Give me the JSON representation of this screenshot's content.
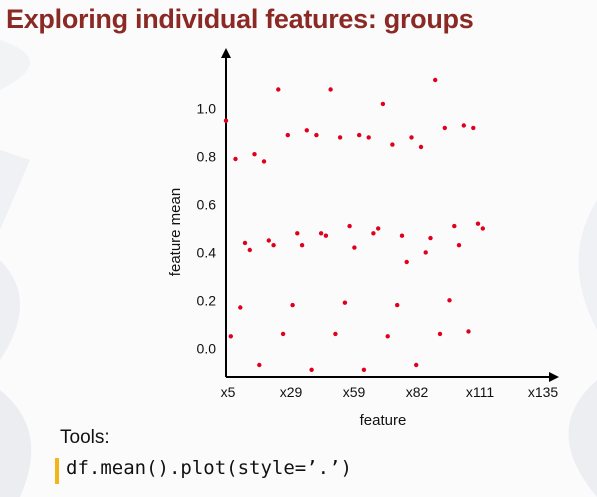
{
  "slide": {
    "title": "Exploring individual features: groups",
    "tools_label": "Tools:",
    "code": "df.mean().plot(style=’.’)",
    "accent_color": "#8b2a25",
    "code_bar_color": "#f2b51a"
  },
  "chart_data": {
    "type": "scatter",
    "xlabel": "feature",
    "ylabel": "feature mean",
    "x_tick_labels": [
      "x5",
      "x29",
      "x59",
      "x82",
      "x111",
      "x135"
    ],
    "y_ticks": [
      0.0,
      0.2,
      0.4,
      0.6,
      0.8,
      1.0
    ],
    "y_tick_labels": [
      "0.0",
      "0.2",
      "0.4",
      "0.6",
      "0.8",
      "1.0"
    ],
    "xlim": [
      5,
      140
    ],
    "ylim": [
      -0.12,
      1.22
    ],
    "grid": false,
    "marker_color": "#e0001b",
    "series": [
      {
        "points": [
          [
            5,
            0.95
          ],
          [
            7,
            0.05
          ],
          [
            9,
            0.79
          ],
          [
            11,
            0.17
          ],
          [
            13,
            0.44
          ],
          [
            15,
            0.41
          ],
          [
            17,
            0.81
          ],
          [
            19,
            -0.07
          ],
          [
            21,
            0.78
          ],
          [
            23,
            0.45
          ],
          [
            25,
            0.43
          ],
          [
            27,
            1.08
          ],
          [
            29,
            0.06
          ],
          [
            31,
            0.89
          ],
          [
            33,
            0.18
          ],
          [
            35,
            0.48
          ],
          [
            37,
            0.43
          ],
          [
            39,
            0.91
          ],
          [
            41,
            -0.09
          ],
          [
            43,
            0.89
          ],
          [
            45,
            0.48
          ],
          [
            47,
            0.47
          ],
          [
            49,
            1.08
          ],
          [
            51,
            0.06
          ],
          [
            53,
            0.88
          ],
          [
            55,
            0.19
          ],
          [
            57,
            0.51
          ],
          [
            59,
            0.42
          ],
          [
            61,
            0.89
          ],
          [
            63,
            -0.09
          ],
          [
            65,
            0.88
          ],
          [
            67,
            0.48
          ],
          [
            69,
            0.5
          ],
          [
            71,
            1.02
          ],
          [
            73,
            0.05
          ],
          [
            75,
            0.85
          ],
          [
            77,
            0.18
          ],
          [
            79,
            0.47
          ],
          [
            81,
            0.36
          ],
          [
            83,
            0.88
          ],
          [
            85,
            -0.07
          ],
          [
            87,
            0.84
          ],
          [
            89,
            0.4
          ],
          [
            91,
            0.46
          ],
          [
            93,
            1.12
          ],
          [
            95,
            0.06
          ],
          [
            97,
            0.92
          ],
          [
            99,
            0.2
          ],
          [
            101,
            0.51
          ],
          [
            103,
            0.43
          ],
          [
            105,
            0.93
          ],
          [
            107,
            0.07
          ],
          [
            109,
            0.92
          ],
          [
            111,
            0.52
          ],
          [
            113,
            0.5
          ]
        ]
      }
    ]
  }
}
